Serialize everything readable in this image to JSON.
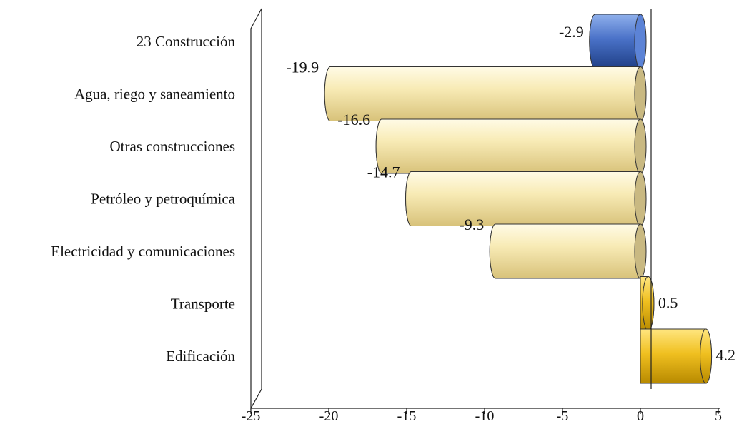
{
  "chart_data": {
    "type": "bar",
    "orientation": "horizontal",
    "categories": [
      "23 Construcción",
      "Agua, riego y saneamiento",
      "Otras construcciones",
      "Petróleo y petroquímica",
      "Electricidad y comunicaciones",
      "Transporte",
      "Edificación"
    ],
    "values": [
      -2.9,
      -19.9,
      -16.6,
      -14.7,
      -9.3,
      0.5,
      4.2
    ],
    "value_labels": [
      "-2.9",
      "-19.9",
      "-16.6",
      "-14.7",
      "-9.3",
      "0.5",
      "4.2"
    ],
    "xlim": [
      -25,
      5
    ],
    "xticks": [
      -25,
      -20,
      -15,
      -10,
      -5,
      0,
      5
    ],
    "xtick_labels": [
      "-25",
      "-20",
      "-15",
      "-10",
      "-5",
      "0",
      "5"
    ],
    "title": "",
    "xlabel": "",
    "ylabel": "",
    "grid": false,
    "legend": "none",
    "style": "3d-cylinder",
    "colors": {
      "highlight": "#4a72c8",
      "negative": "#f1dd9a",
      "positive": "#f0c020"
    }
  }
}
